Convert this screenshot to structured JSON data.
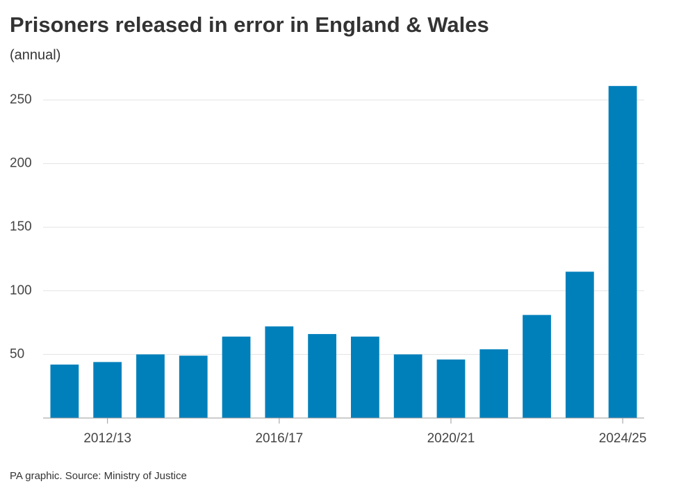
{
  "chart_data": {
    "type": "bar",
    "title": "Prisoners released in error in England & Wales",
    "subtitle": "(annual)",
    "source": "PA graphic. Source: Ministry of Justice",
    "categories": [
      null,
      "2012/13",
      null,
      null,
      null,
      "2016/17",
      null,
      null,
      null,
      "2020/21",
      null,
      null,
      null,
      "2024/25"
    ],
    "values": [
      42,
      44,
      50,
      49,
      64,
      72,
      66,
      64,
      50,
      46,
      54,
      81,
      115,
      261
    ],
    "color": "#0080bb",
    "ylim": [
      0,
      262
    ],
    "yticks": [
      50,
      100,
      150,
      200,
      250
    ],
    "grid": true
  }
}
